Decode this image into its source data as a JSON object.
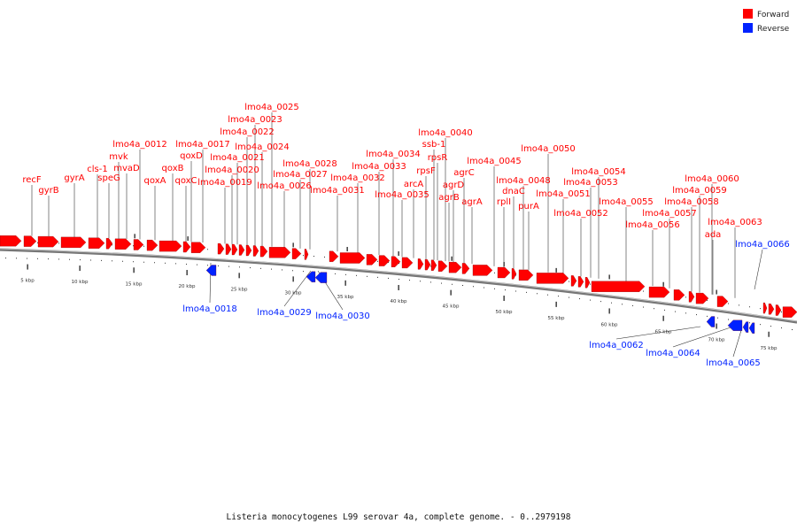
{
  "legend": {
    "forward": {
      "label": "Forward",
      "color": "#ff0000"
    },
    "reverse": {
      "label": "Reverse",
      "color": "#0022ff"
    }
  },
  "caption": "Listeria monocytogenes L99 serovar 4a, complete genome. - 0..2979198",
  "scale": {
    "unit": "kbp",
    "tick_labels": [
      "5 kbp",
      "10 kbp",
      "15 kbp",
      "20 kbp",
      "25 kbp",
      "30 kbp",
      "35 kbp",
      "40 kbp",
      "45 kbp",
      "50 kbp",
      "55 kbp",
      "60 kbp",
      "65 kbp",
      "70 kbp",
      "75 kbp"
    ]
  },
  "forward_genes": [
    {
      "name": "recF"
    },
    {
      "name": "gyrB"
    },
    {
      "name": "gyrA"
    },
    {
      "name": "cls-1"
    },
    {
      "name": "speG"
    },
    {
      "name": "mvk"
    },
    {
      "name": "mvaD"
    },
    {
      "name": "lmo4a_0012"
    },
    {
      "name": "qoxA"
    },
    {
      "name": "qoxB"
    },
    {
      "name": "qoxC"
    },
    {
      "name": "qoxD"
    },
    {
      "name": "lmo4a_0017"
    },
    {
      "name": "lmo4a_0019"
    },
    {
      "name": "lmo4a_0020"
    },
    {
      "name": "lmo4a_0021"
    },
    {
      "name": "lmo4a_0022"
    },
    {
      "name": "lmo4a_0023"
    },
    {
      "name": "lmo4a_0024"
    },
    {
      "name": "lmo4a_0025"
    },
    {
      "name": "lmo4a_0026"
    },
    {
      "name": "lmo4a_0027"
    },
    {
      "name": "lmo4a_0028"
    },
    {
      "name": "lmo4a_0031"
    },
    {
      "name": "lmo4a_0032"
    },
    {
      "name": "lmo4a_0033"
    },
    {
      "name": "lmo4a_0034"
    },
    {
      "name": "lmo4a_0035"
    },
    {
      "name": "arcA"
    },
    {
      "name": "rpsF"
    },
    {
      "name": "ssb-1"
    },
    {
      "name": "rpsR"
    },
    {
      "name": "lmo4a_0040"
    },
    {
      "name": "agrB"
    },
    {
      "name": "agrD"
    },
    {
      "name": "agrC"
    },
    {
      "name": "agrA"
    },
    {
      "name": "lmo4a_0045"
    },
    {
      "name": "rplI"
    },
    {
      "name": "dnaC"
    },
    {
      "name": "lmo4a_0048"
    },
    {
      "name": "purA"
    },
    {
      "name": "lmo4a_0050"
    },
    {
      "name": "lmo4a_0051"
    },
    {
      "name": "lmo4a_0052"
    },
    {
      "name": "lmo4a_0053"
    },
    {
      "name": "lmo4a_0054"
    },
    {
      "name": "lmo4a_0055"
    },
    {
      "name": "lmo4a_0056"
    },
    {
      "name": "lmo4a_0057"
    },
    {
      "name": "lmo4a_0058"
    },
    {
      "name": "lmo4a_0059"
    },
    {
      "name": "lmo4a_0060"
    },
    {
      "name": "ada"
    },
    {
      "name": "lmo4a_0063"
    }
  ],
  "reverse_genes": [
    {
      "name": "lmo4a_0018"
    },
    {
      "name": "lmo4a_0029"
    },
    {
      "name": "lmo4a_0030"
    },
    {
      "name": "lmo4a_0062"
    },
    {
      "name": "lmo4a_0064"
    },
    {
      "name": "lmo4a_0065"
    },
    {
      "name": "lmo4a_0066"
    }
  ]
}
